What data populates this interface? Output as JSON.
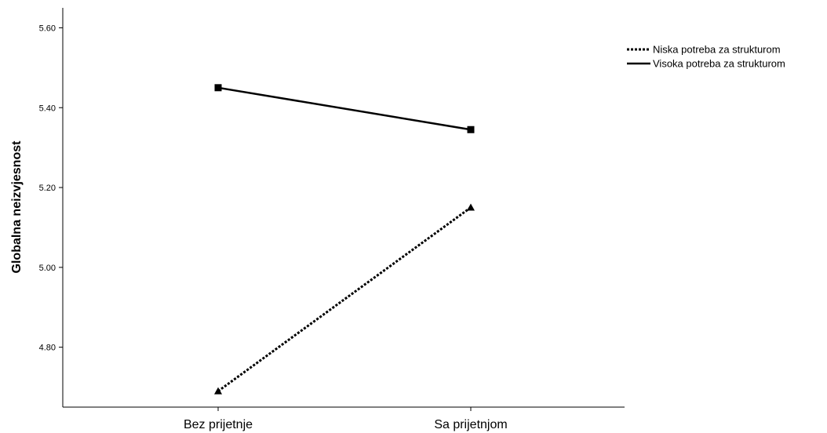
{
  "chart_data": {
    "type": "line",
    "title": "",
    "xlabel": "",
    "ylabel": "Globalna neizvjesnost",
    "categories": [
      "Bez prijetnje",
      "Sa prijetnjom"
    ],
    "ylim": [
      4.65,
      5.65
    ],
    "yticks": [
      "4.80",
      "5.00",
      "5.20",
      "5.40",
      "5.60"
    ],
    "grid": false,
    "legend_position": "top-right",
    "series": [
      {
        "name": "Niska potreba za strukturom",
        "values": [
          4.69,
          5.15
        ],
        "line_style": "dotted",
        "marker": "triangle",
        "color": "#000000"
      },
      {
        "name": "Visoka potreba za strukturom",
        "values": [
          5.45,
          5.345
        ],
        "line_style": "solid",
        "marker": "square",
        "color": "#000000"
      }
    ]
  }
}
